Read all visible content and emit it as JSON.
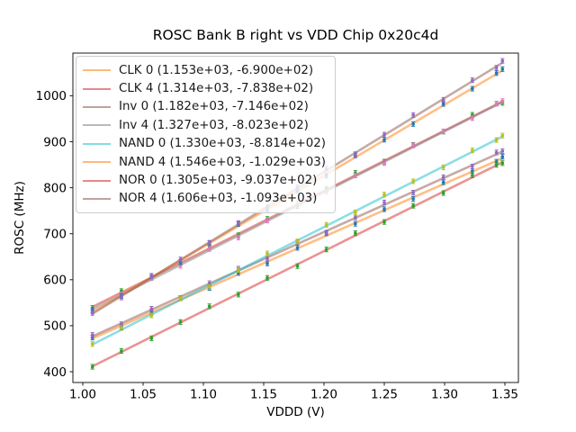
{
  "chart_data": {
    "type": "scatter",
    "title": "ROSC Bank B right vs VDD Chip 0x20c4d",
    "xlabel": "VDDD (V)",
    "ylabel": "ROSC (MHz)",
    "xlim": [
      0.9918,
      1.3612
    ],
    "ylim": [
      376.5,
      1092.8
    ],
    "grid": false,
    "legend_position": "upper-left",
    "line_alpha": 0.5,
    "yerr": 5,
    "xticks": {
      "values": [
        1.0,
        1.05,
        1.1,
        1.15,
        1.2,
        1.25,
        1.3,
        1.35
      ],
      "labels": [
        "1.00",
        "1.05",
        "1.10",
        "1.15",
        "1.20",
        "1.25",
        "1.30",
        "1.35"
      ]
    },
    "yticks": {
      "values": [
        400,
        500,
        600,
        700,
        800,
        900,
        1000
      ],
      "labels": [
        "400",
        "500",
        "600",
        "700",
        "800",
        "900",
        "1000"
      ]
    },
    "x": [
      1.008,
      1.032,
      1.057,
      1.081,
      1.105,
      1.129,
      1.153,
      1.178,
      1.202,
      1.226,
      1.25,
      1.274,
      1.299,
      1.323,
      1.343,
      1.348
    ],
    "series": [
      {
        "name": "CLK 0",
        "label": "CLK 0 (1.153e+03, -6.900e+02)",
        "fit_slope": 1153,
        "fit_intercept": -690,
        "line_color": "#ff7f0e",
        "point_color": "#1f77b4",
        "y": [
          474.2,
          496.9,
          529.7,
          560.4,
          582.1,
          614.7,
          635.4,
          669.3,
          700.9,
          721.6,
          753.3,
          775.9,
          811.8,
          836.4,
          856.5,
          867.3
        ]
      },
      {
        "name": "CLK 4",
        "label": "CLK 4 (1.314e+03, -7.838e+02)",
        "fit_slope": 1314,
        "fit_intercept": -783.8,
        "line_color": "#d62728",
        "point_color": "#2ca02c",
        "y": [
          538.7,
          575.2,
          604.1,
          638.6,
          672.2,
          696.7,
          732.2,
          760.1,
          797.6,
          832.2,
          856.7,
          893.2,
          922.1,
          958.6,
          982.9,
          984.5
        ]
      },
      {
        "name": "Inv 0",
        "label": "Inv 0 (1.182e+03, -7.146e+02)",
        "fit_slope": 1182,
        "fit_intercept": -714.6,
        "line_color": "#8c564b",
        "point_color": "#9467bd",
        "y": [
          479.9,
          503.2,
          536.8,
          560.1,
          592.5,
          623.9,
          646.2,
          680.8,
          702.2,
          735.5,
          767.9,
          789.3,
          822.8,
          846.2,
          876.8,
          879.7
        ]
      },
      {
        "name": "Inv 4",
        "label": "Inv 4 (1.327e+03, -8.023e+02)",
        "fit_slope": 1327,
        "fit_intercept": -802.3,
        "line_color": "#7f7f7f",
        "point_color": "#e377c2",
        "y": [
          532.3,
          568.2,
          604.3,
          630.2,
          667.0,
          691.9,
          728.7,
          765.9,
          790.8,
          826.6,
          853.5,
          892.3,
          922.5,
          951.3,
          982.8,
          988.5
        ]
      },
      {
        "name": "NAND 0",
        "label": "NAND 0 (1.330e+03, -8.814e+02)",
        "fit_slope": 1330,
        "fit_intercept": -881.4,
        "line_color": "#17becf",
        "point_color": "#bcbd22",
        "y": [
          460.2,
          495.2,
          522.4,
          559.3,
          584.3,
          621.2,
          657.1,
          683.3,
          719.3,
          746.2,
          785.1,
          814.0,
          844.3,
          881.2,
          903.8,
          913.4
        ]
      },
      {
        "name": "NAND 4",
        "label": "NAND 4 (1.546e+03, -1.029e+03)",
        "fit_slope": 1546,
        "fit_intercept": -1029,
        "line_color": "#ff7f0e",
        "point_color": "#1f77b4",
        "y": [
          533.4,
          564.5,
          608.1,
          638.2,
          680.3,
          721.4,
          751.5,
          794.2,
          826.3,
          870.4,
          904.5,
          938.6,
          982.3,
          1015.4,
          1049.3,
          1058.0
        ]
      },
      {
        "name": "NOR 0",
        "label": "NOR 0 (1.305e+03, -9.037e+02)",
        "fit_slope": 1305,
        "fit_intercept": -903.7,
        "line_color": "#d62728",
        "point_color": "#2ca02c",
        "y": [
          410.7,
          445.0,
          472.7,
          508.0,
          542.3,
          567.6,
          604.0,
          629.6,
          665.9,
          701.2,
          725.6,
          760.9,
          788.5,
          826.8,
          849.9,
          853.5
        ]
      },
      {
        "name": "NOR 4",
        "label": "NOR 4 (1.606e+03, -1.093e+03)",
        "fit_slope": 1606,
        "fit_intercept": -1093,
        "line_color": "#8c564b",
        "point_color": "#9467bd",
        "y": [
          527.8,
          561.4,
          608.5,
          644.1,
          679.6,
          723.2,
          757.7,
          800.9,
          841.4,
          873.0,
          915.5,
          958.1,
          991.2,
          1033.8,
          1060.9,
          1075.9
        ]
      }
    ]
  }
}
